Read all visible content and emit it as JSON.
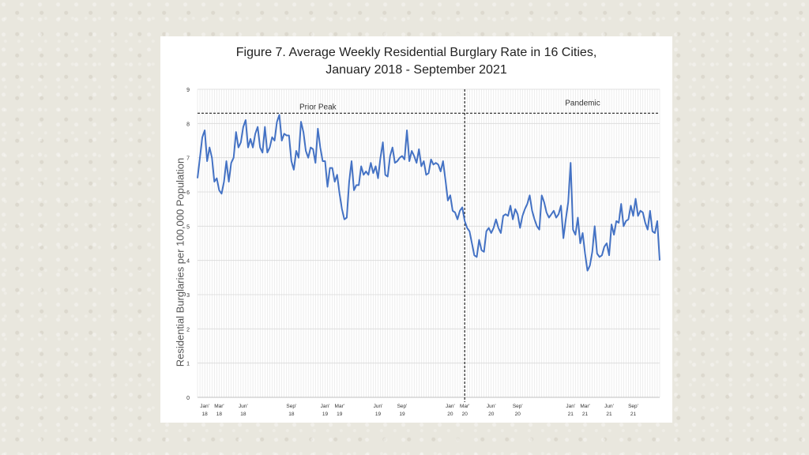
{
  "chart_data": {
    "type": "line",
    "title_line1": "Figure 7. Average Weekly Residential Burglary Rate in 16 Cities,",
    "title_line2": "January 2018 - September 2021",
    "ylabel": "Residential Burglaries per 100,000 Population",
    "xlabel": "",
    "ylim": [
      0,
      9
    ],
    "yticks": [
      "0",
      "1",
      "2",
      "3",
      "4",
      "5",
      "6",
      "7",
      "8",
      "9"
    ],
    "grid": true,
    "xticks": [
      {
        "week": 3,
        "month": "Jan'",
        "year": "18"
      },
      {
        "week": 9,
        "month": "Mar'",
        "year": "18"
      },
      {
        "week": 19,
        "month": "Jun'",
        "year": "18"
      },
      {
        "week": 39,
        "month": "Sep'",
        "year": "18"
      },
      {
        "week": 53,
        "month": "Jan'",
        "year": "19"
      },
      {
        "week": 59,
        "month": "Mar'",
        "year": "19"
      },
      {
        "week": 75,
        "month": "Jun'",
        "year": "19"
      },
      {
        "week": 85,
        "month": "Sep'",
        "year": "19"
      },
      {
        "week": 105,
        "month": "Jan'",
        "year": "20"
      },
      {
        "week": 111,
        "month": "Mar'",
        "year": "20"
      },
      {
        "week": 122,
        "month": "Jun'",
        "year": "20"
      },
      {
        "week": 133,
        "month": "Sep'",
        "year": "20"
      },
      {
        "week": 155,
        "month": "Jan'",
        "year": "21"
      },
      {
        "week": 161,
        "month": "Mar'",
        "year": "21"
      },
      {
        "week": 171,
        "month": "Jun'",
        "year": "21"
      },
      {
        "week": 181,
        "month": "Sep'",
        "year": "21"
      }
    ],
    "reference_line": {
      "value": 8.3,
      "label_left": "Prior Peak",
      "label_right": "Pandemic"
    },
    "pandemic_start_week": 111,
    "series": [
      {
        "name": "Average weekly residential burglary rate",
        "color": "#4472c4",
        "values": [
          6.4,
          7.0,
          7.6,
          7.8,
          6.9,
          7.3,
          7.0,
          6.3,
          6.4,
          6.05,
          5.95,
          6.3,
          6.9,
          6.3,
          6.85,
          7.0,
          7.75,
          7.3,
          7.45,
          7.9,
          8.1,
          7.3,
          7.55,
          7.3,
          7.7,
          7.9,
          7.3,
          7.15,
          7.9,
          7.15,
          7.3,
          7.6,
          7.5,
          8.05,
          8.25,
          7.5,
          7.7,
          7.65,
          7.65,
          6.9,
          6.65,
          7.2,
          7.0,
          8.05,
          7.75,
          7.2,
          7.0,
          7.3,
          7.25,
          6.85,
          7.85,
          7.3,
          6.9,
          6.9,
          6.15,
          6.7,
          6.7,
          6.3,
          6.5,
          5.95,
          5.5,
          5.2,
          5.25,
          6.3,
          6.9,
          6.05,
          6.2,
          6.2,
          6.75,
          6.5,
          6.6,
          6.5,
          6.85,
          6.55,
          6.75,
          6.4,
          7.0,
          7.45,
          6.5,
          6.45,
          7.05,
          7.3,
          6.85,
          6.9,
          7.0,
          7.05,
          6.95,
          7.8,
          6.9,
          7.2,
          7.05,
          6.85,
          7.25,
          6.75,
          6.9,
          6.5,
          6.55,
          6.95,
          6.8,
          6.85,
          6.8,
          6.6,
          6.9,
          6.35,
          5.75,
          5.9,
          5.45,
          5.4,
          5.2,
          5.45,
          5.55,
          5.15,
          4.95,
          4.85,
          4.5,
          4.15,
          4.1,
          4.6,
          4.3,
          4.25,
          4.85,
          4.95,
          4.8,
          4.95,
          5.2,
          4.95,
          4.8,
          5.3,
          5.35,
          5.3,
          5.6,
          5.2,
          5.5,
          5.35,
          4.95,
          5.3,
          5.5,
          5.65,
          5.9,
          5.45,
          5.2,
          5.0,
          4.9,
          5.9,
          5.7,
          5.4,
          5.25,
          5.35,
          5.45,
          5.25,
          5.35,
          5.6,
          4.65,
          5.2,
          5.7,
          6.85,
          4.9,
          4.75,
          5.25,
          4.5,
          4.8,
          4.2,
          3.7,
          3.85,
          4.25,
          5.0,
          4.2,
          4.1,
          4.15,
          4.4,
          4.5,
          4.15,
          5.05,
          4.75,
          5.15,
          5.1,
          5.65,
          5.0,
          5.15,
          5.2,
          5.6,
          5.3,
          5.8,
          5.3,
          5.45,
          5.4,
          5.1,
          4.9,
          5.45,
          4.85,
          4.8,
          5.15,
          4.0
        ]
      }
    ]
  }
}
